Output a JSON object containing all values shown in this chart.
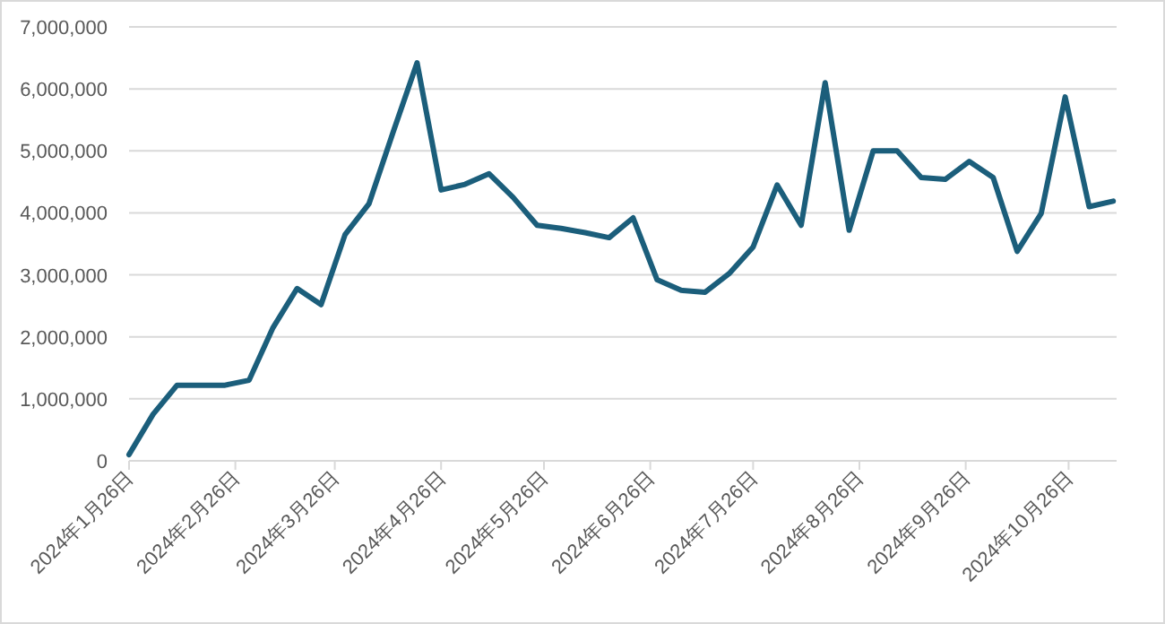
{
  "chart_data": {
    "type": "line",
    "x": [
      "2024-01-26",
      "2024-02-02",
      "2024-02-09",
      "2024-02-16",
      "2024-02-23",
      "2024-03-01",
      "2024-03-08",
      "2024-03-15",
      "2024-03-22",
      "2024-03-29",
      "2024-04-05",
      "2024-04-12",
      "2024-04-19",
      "2024-04-26",
      "2024-05-03",
      "2024-05-10",
      "2024-05-17",
      "2024-05-24",
      "2024-05-31",
      "2024-06-07",
      "2024-06-14",
      "2024-06-21",
      "2024-06-28",
      "2024-07-05",
      "2024-07-12",
      "2024-07-19",
      "2024-07-26",
      "2024-08-02",
      "2024-08-09",
      "2024-08-16",
      "2024-08-23",
      "2024-08-30",
      "2024-09-06",
      "2024-09-13",
      "2024-09-20",
      "2024-09-27",
      "2024-10-04",
      "2024-10-11",
      "2024-10-18",
      "2024-10-25",
      "2024-11-01",
      "2024-11-08"
    ],
    "series": [
      {
        "color": "#1b5e7b",
        "values": [
          100000,
          750000,
          1220000,
          1220000,
          1220000,
          1300000,
          2150000,
          2780000,
          2520000,
          3650000,
          4150000,
          5300000,
          6420000,
          4370000,
          4460000,
          4630000,
          4250000,
          3800000,
          3750000,
          3680000,
          3600000,
          3920000,
          2920000,
          2750000,
          2720000,
          3020000,
          3450000,
          4450000,
          3800000,
          6100000,
          3720000,
          5000000,
          5000000,
          4570000,
          4540000,
          4830000,
          4570000,
          3380000,
          3990000,
          5870000,
          4100000,
          4190000
        ]
      }
    ],
    "xlim": [
      "2024-01-26",
      "2024-11-09"
    ],
    "xticks": [
      {
        "value": "2024-01-26",
        "label": "2024年1月26日"
      },
      {
        "value": "2024-02-26",
        "label": "2024年2月26日"
      },
      {
        "value": "2024-03-26",
        "label": "2024年3月26日"
      },
      {
        "value": "2024-04-26",
        "label": "2024年4月26日"
      },
      {
        "value": "2024-05-26",
        "label": "2024年5月26日"
      },
      {
        "value": "2024-06-26",
        "label": "2024年6月26日"
      },
      {
        "value": "2024-07-26",
        "label": "2024年7月26日"
      },
      {
        "value": "2024-08-26",
        "label": "2024年8月26日"
      },
      {
        "value": "2024-09-26",
        "label": "2024年9月26日"
      },
      {
        "value": "2024-10-26",
        "label": "2024年10月26日"
      }
    ],
    "ylim": [
      0,
      7000000
    ],
    "yticks": [
      {
        "value": 0,
        "label": "0"
      },
      {
        "value": 1000000,
        "label": "1,000,000"
      },
      {
        "value": 2000000,
        "label": "2,000,000"
      },
      {
        "value": 3000000,
        "label": "3,000,000"
      },
      {
        "value": 4000000,
        "label": "4,000,000"
      },
      {
        "value": 5000000,
        "label": "5,000,000"
      },
      {
        "value": 6000000,
        "label": "6,000,000"
      },
      {
        "value": 7000000,
        "label": "7,000,000"
      }
    ],
    "grid": "y",
    "marker": "none",
    "line_style": "solid"
  }
}
